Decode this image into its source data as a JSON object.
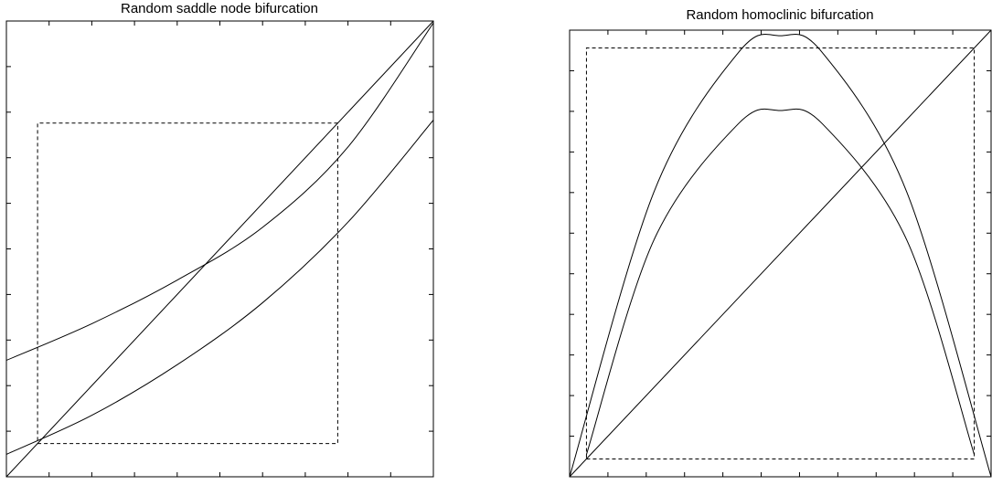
{
  "chart_data": [
    {
      "type": "line",
      "title": "Random saddle node bifurcation",
      "xlim": [
        0,
        1
      ],
      "ylim": [
        0,
        1
      ],
      "tick_count": 9,
      "grid": false,
      "series": [
        {
          "points": [
            [
              0,
              0
            ],
            [
              1,
              1
            ]
          ]
        },
        {
          "points": [
            [
              0,
              0.2555
            ],
            [
              0.2,
              0.3359
            ],
            [
              0.4,
              0.4316
            ],
            [
              0.6,
              0.5473
            ],
            [
              0.8,
              0.7236
            ],
            [
              1,
              0.9957
            ]
          ]
        },
        {
          "points": [
            [
              0,
              0.0492
            ],
            [
              0.2,
              0.1348
            ],
            [
              0.4,
              0.2458
            ],
            [
              0.6,
              0.3819
            ],
            [
              0.8,
              0.5587
            ],
            [
              1,
              0.7826
            ]
          ]
        },
        {
          "dashed": true,
          "points": [
            [
              0.073,
              0.073
            ],
            [
              0.776,
              0.073
            ],
            [
              0.776,
              0.776
            ],
            [
              0.073,
              0.776
            ],
            [
              0.073,
              0.073
            ]
          ]
        }
      ]
    },
    {
      "type": "line",
      "title": "Random homoclinic bifurcation",
      "xlim": [
        0,
        1
      ],
      "ylim": [
        0,
        1
      ],
      "tick_count": 10,
      "grid": false,
      "series": [
        {
          "points": [
            [
              0,
              0
            ],
            [
              1,
              1
            ]
          ]
        },
        {
          "points": [
            [
              0,
              0
            ],
            [
              0.2,
              0.6375
            ],
            [
              0.4,
              0.9493
            ],
            [
              0.5,
              0.9875
            ],
            [
              0.6,
              0.9493
            ],
            [
              0.8,
              0.6375
            ],
            [
              1,
              0
            ]
          ]
        },
        {
          "points": [
            [
              0.04,
              0.05
            ],
            [
              0.2,
              0.53
            ],
            [
              0.4,
              0.79
            ],
            [
              0.5,
              0.82
            ],
            [
              0.6,
              0.79
            ],
            [
              0.8,
              0.53
            ],
            [
              0.96,
              0.05
            ]
          ]
        },
        {
          "dashed": true,
          "points": [
            [
              0.04,
              0.04
            ],
            [
              0.96,
              0.04
            ],
            [
              0.96,
              0.96
            ],
            [
              0.04,
              0.96
            ],
            [
              0.04,
              0.04
            ]
          ]
        }
      ]
    }
  ]
}
